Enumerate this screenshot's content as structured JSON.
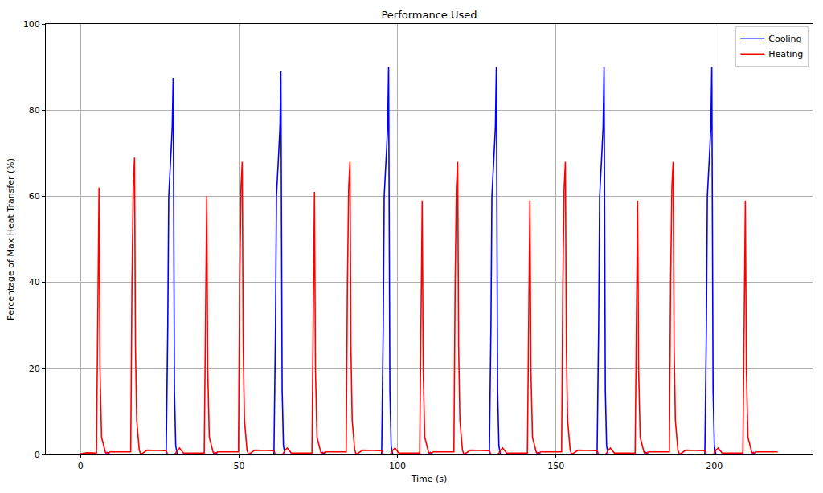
{
  "chart_data": {
    "type": "line",
    "title": "Performance Used",
    "x_label": "Time (s)",
    "y_label": "Percentage of Max Heat Transfer (%)",
    "xlim": [
      -11,
      231
    ],
    "xticks": [
      0,
      50,
      100,
      150,
      200
    ],
    "ylim": [
      0,
      100
    ],
    "yticks": [
      0,
      20,
      40,
      60,
      80,
      100
    ],
    "grid": true,
    "legend": "upper right",
    "x": [
      0,
      2,
      5.0,
      5.4,
      5.8,
      6.1,
      6.6,
      7.8,
      8.3,
      9.3,
      15.8,
      16.2,
      16.6,
      17.0,
      17.3,
      17.7,
      18.5,
      19.0,
      21.0,
      27.0,
      27.5,
      27.8,
      28.5,
      28.9,
      29.2,
      29.6,
      30.0,
      30.5,
      31.2,
      32.5,
      39.0,
      39.4,
      39.8,
      40.1,
      40.6,
      41.8,
      42.3,
      43.3,
      49.8,
      50.2,
      50.6,
      51.0,
      51.3,
      51.7,
      52.5,
      53.0,
      55.0,
      61.0,
      61.5,
      61.8,
      62.5,
      62.9,
      63.2,
      63.6,
      64.0,
      64.5,
      65.2,
      66.5,
      73.0,
      73.4,
      73.8,
      74.1,
      74.6,
      75.8,
      76.3,
      77.3,
      83.8,
      84.2,
      84.6,
      85.0,
      85.3,
      85.7,
      86.5,
      87.0,
      89.0,
      95.0,
      95.5,
      95.8,
      96.5,
      96.9,
      97.2,
      97.6,
      98.0,
      98.5,
      99.2,
      100.5,
      107.0,
      107.4,
      107.8,
      108.1,
      108.6,
      109.8,
      110.3,
      111.3,
      117.8,
      118.2,
      118.6,
      119.0,
      119.3,
      119.7,
      120.5,
      121.0,
      123.0,
      129.0,
      129.5,
      129.8,
      130.5,
      130.9,
      131.2,
      131.6,
      132.0,
      132.5,
      133.2,
      134.5,
      141.0,
      141.4,
      141.8,
      142.1,
      142.6,
      143.8,
      144.3,
      145.3,
      151.8,
      152.2,
      152.6,
      153.0,
      153.3,
      153.7,
      154.5,
      155.0,
      157.0,
      163.0,
      163.5,
      163.8,
      164.5,
      164.9,
      165.2,
      165.6,
      166.0,
      166.5,
      167.2,
      168.5,
      175.0,
      175.4,
      175.8,
      176.1,
      176.6,
      177.8,
      178.3,
      179.3,
      185.8,
      186.2,
      186.6,
      187.0,
      187.3,
      187.7,
      188.5,
      189.0,
      191.0,
      197.0,
      197.5,
      197.8,
      198.5,
      198.9,
      199.2,
      199.6,
      200.0,
      200.5,
      201.2,
      202.5,
      209.0,
      209.4,
      209.8,
      210.1,
      210.6,
      211.8,
      212.3,
      213.3,
      220
    ],
    "series": [
      {
        "name": "Cooling",
        "color": "#0000ff",
        "line_style": "solid",
        "values": [
          0,
          0,
          0,
          0,
          0,
          0,
          0,
          0,
          0.5,
          0,
          0,
          0,
          0,
          0,
          0,
          0,
          0,
          0,
          0,
          0,
          30,
          60,
          70,
          76,
          87.5,
          15,
          2,
          0,
          0,
          0,
          0,
          0,
          0,
          0,
          0,
          0,
          0.5,
          0,
          0,
          0,
          0,
          0,
          0,
          0,
          0,
          0,
          0,
          0,
          30,
          60,
          70,
          76,
          89,
          15,
          2,
          0,
          0,
          0,
          0,
          0,
          0,
          0,
          0,
          0,
          0.5,
          0,
          0,
          0,
          0,
          0,
          0,
          0,
          0,
          0,
          0,
          0,
          30,
          60,
          70,
          76,
          90,
          15,
          2,
          0,
          0,
          0,
          0,
          0,
          0,
          0,
          0,
          0,
          0.5,
          0,
          0,
          0,
          0,
          0,
          0,
          0,
          0,
          0,
          0,
          0,
          30,
          60,
          70,
          76,
          90,
          15,
          2,
          0,
          0,
          0,
          0,
          0,
          0,
          0,
          0,
          0,
          0.5,
          0,
          0,
          0,
          0,
          0,
          0,
          0,
          0,
          0,
          0,
          0,
          30,
          60,
          70,
          76,
          90,
          15,
          2,
          0,
          0,
          0,
          0,
          0,
          0,
          0,
          0,
          0,
          0.5,
          0,
          0,
          0,
          0,
          0,
          0,
          0,
          0,
          0,
          0,
          0,
          30,
          60,
          70,
          76,
          90,
          15,
          2,
          0,
          0,
          0,
          0,
          0,
          0,
          0,
          0,
          0,
          0.5,
          0,
          0
        ]
      },
      {
        "name": "Heating",
        "color": "#ff0000",
        "line_style": "solid",
        "values": [
          0.2,
          0.4,
          0.3,
          30,
          62,
          20,
          4,
          0.5,
          0.3,
          0.6,
          0.6,
          40,
          62,
          69,
          25,
          8,
          1,
          0,
          1,
          0.9,
          0,
          0,
          0,
          0,
          0,
          0,
          0.3,
          1,
          1.5,
          0.3,
          0.3,
          30,
          60,
          20,
          4,
          0.5,
          0.3,
          0.6,
          0.6,
          40,
          62,
          68,
          25,
          8,
          1,
          0,
          1,
          0.9,
          0,
          0,
          0,
          0,
          0,
          0,
          0.3,
          1,
          1.5,
          0.3,
          0.3,
          30,
          61,
          20,
          4,
          0.5,
          0.3,
          0.6,
          0.6,
          40,
          62,
          68,
          25,
          8,
          1,
          0,
          1,
          0.9,
          0,
          0,
          0,
          0,
          0,
          0,
          0.3,
          1,
          1.5,
          0.3,
          0.3,
          30,
          59,
          20,
          4,
          0.5,
          0.3,
          0.6,
          0.6,
          40,
          62,
          68,
          25,
          8,
          1,
          0,
          1,
          0.9,
          0,
          0,
          0,
          0,
          0,
          0,
          0.3,
          1,
          1.5,
          0.3,
          0.3,
          30,
          59,
          20,
          4,
          0.5,
          0.3,
          0.6,
          0.6,
          40,
          62,
          68,
          25,
          8,
          1,
          0,
          1,
          0.9,
          0,
          0,
          0,
          0,
          0,
          0,
          0.3,
          1,
          1.5,
          0.3,
          0.3,
          30,
          59,
          20,
          4,
          0.5,
          0.3,
          0.6,
          0.6,
          40,
          62,
          68,
          25,
          8,
          1,
          0,
          1,
          0.9,
          0,
          0,
          0,
          0,
          0,
          0,
          0.3,
          1,
          1.5,
          0.3,
          0.3,
          30,
          59,
          20,
          4,
          0.5,
          0.3,
          0.6,
          0.6
        ]
      }
    ]
  }
}
